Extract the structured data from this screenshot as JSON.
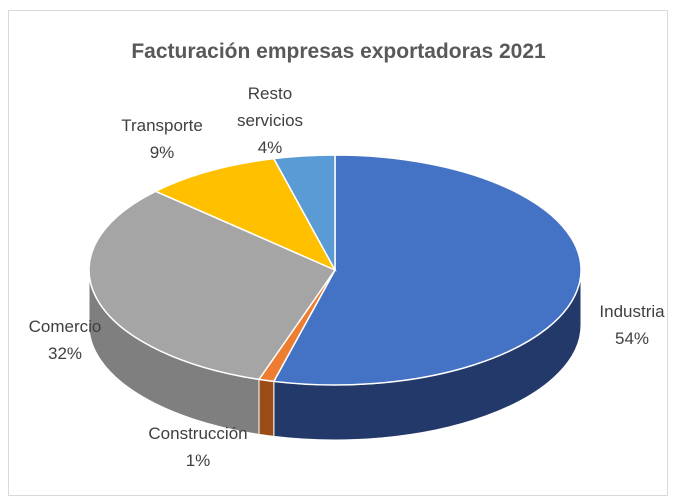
{
  "chart_data": {
    "type": "pie",
    "title": "Facturación empresas exportadoras 2021",
    "categories": [
      "Industria",
      "Construcción",
      "Comercio",
      "Transporte",
      "Resto servicios"
    ],
    "values": [
      54,
      1,
      32,
      9,
      4
    ],
    "value_labels": [
      "54%",
      "1%",
      "32%",
      "9%",
      "4%"
    ],
    "colors": [
      "#4472c4",
      "#ed7d31",
      "#a5a5a5",
      "#ffc000",
      "#5b9bd5"
    ],
    "side_colors": [
      "#22396a",
      "#9b4d17",
      "#7f7f7f",
      "#b38600",
      "#3a6d9c"
    ]
  }
}
